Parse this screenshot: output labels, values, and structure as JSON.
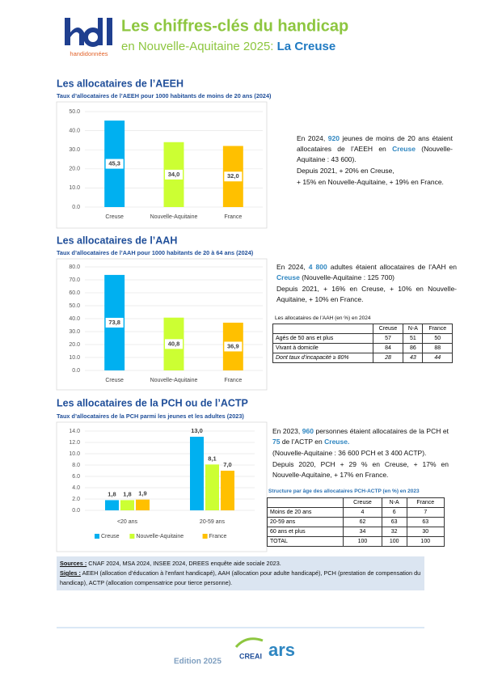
{
  "header": {
    "logo_text": "handidonnées",
    "title": "Les chiffres-clés du handicap",
    "subtitle": "en Nouvelle-Aquitaine 2025: ",
    "territory": "La Creuse"
  },
  "sections": [
    {
      "heading": "Les allocataires de l’AEEH",
      "chart": {
        "type": "bar",
        "title": "Taux d’allocataires de l’AEEH pour 1000 habitants de moins de 20 ans (2024)",
        "categories": [
          "Creuse",
          "Nouvelle-Aquitaine",
          "France"
        ],
        "values": [
          45.3,
          34.0,
          32.0
        ],
        "value_labels": [
          "45,3",
          "34,0",
          "32,0"
        ],
        "colors": [
          "#00b0f0",
          "#ccff33",
          "#ffc000"
        ],
        "ylim": [
          0,
          50
        ],
        "yticks": [
          {
            "value": 0,
            "label": "0.0"
          },
          {
            "value": 10,
            "label": "10.0"
          },
          {
            "value": 20,
            "label": "20.0"
          },
          {
            "value": 30,
            "label": "30.0"
          },
          {
            "value": 40,
            "label": "40.0"
          },
          {
            "value": 50,
            "label": "50.0"
          }
        ],
        "grid": true
      },
      "paragraphs": [
        [
          "En 2024, ",
          "920",
          " jeunes de moins de 20 ans étaient allocataires de l’AEEH en ",
          "Creuse",
          " (Nouvelle-Aquitaine : 43 600)."
        ],
        [
          "Depuis 2021, + 20% en Creuse,"
        ],
        [
          "+ 15% en Nouvelle-Aquitaine, + 19% en France."
        ]
      ]
    },
    {
      "heading": "Les allocataires de l’AAH",
      "chart": {
        "type": "bar",
        "title": "Taux d’allocataires de l’AAH pour 1000 habitants de 20 à 64 ans (2024)",
        "categories": [
          "Creuse",
          "Nouvelle-Aquitaine",
          "France"
        ],
        "values": [
          73.8,
          40.8,
          36.9
        ],
        "value_labels": [
          "73,8",
          "40,8",
          "36,9"
        ],
        "colors": [
          "#00b0f0",
          "#ccff33",
          "#ffc000"
        ],
        "ylim": [
          0,
          80
        ],
        "yticks": [
          {
            "value": 0,
            "label": "0.0"
          },
          {
            "value": 10,
            "label": "10.0"
          },
          {
            "value": 20,
            "label": "20.0"
          },
          {
            "value": 30,
            "label": "30.0"
          },
          {
            "value": 40,
            "label": "40.0"
          },
          {
            "value": 50,
            "label": "50.0"
          },
          {
            "value": 60,
            "label": "60.0"
          },
          {
            "value": 70,
            "label": "70.0"
          },
          {
            "value": 80,
            "label": "80.0"
          }
        ],
        "grid": true
      },
      "paragraphs": [
        [
          "En 2024, ",
          "4 800",
          " adultes étaient allocataires de l’AAH en ",
          "Creuse",
          " (Nouvelle-Aquitaine : 125 700)"
        ],
        [
          "Depuis 2021, + 16% en Creuse, + 10% en Nouvelle-Aquitaine, + 10% en France."
        ]
      ],
      "table": {
        "title": "Les allocataires de l’AAH (en %) en 2024",
        "columns": [
          "Creuse",
          "N-A",
          "France"
        ],
        "rows": [
          {
            "label": "Agés de 50 ans et plus",
            "values": [
              57,
              51,
              50
            ]
          },
          {
            "label": "Vivant à domicile",
            "values": [
              84,
              86,
              88
            ]
          },
          {
            "label": "Dont taux d’incapacité ≥ 80%",
            "values": [
              28,
              43,
              44
            ]
          }
        ]
      }
    },
    {
      "heading": "Les allocataires de la PCH ou de l’ACTP",
      "chart": {
        "type": "grouped-bar",
        "title": "Taux d’allocataires de la PCH parmi les jeunes et les adultes (2023)",
        "categories": [
          "<20 ans",
          "20-59 ans"
        ],
        "series": [
          {
            "name": "Creuse",
            "color": "#00b0f0",
            "values": [
              1.8,
              13.0
            ],
            "value_labels": [
              "1,8",
              "13,0"
            ]
          },
          {
            "name": "Nouvelle-Aquitaine",
            "color": "#ccff33",
            "values": [
              1.8,
              8.1
            ],
            "value_labels": [
              "1,8",
              "8,1"
            ]
          },
          {
            "name": "France",
            "color": "#ffc000",
            "values": [
              1.9,
              7.0
            ],
            "value_labels": [
              "1,9",
              "7,0"
            ]
          }
        ],
        "ylim": [
          0,
          14
        ],
        "yticks": [
          {
            "value": 0,
            "label": "0.0"
          },
          {
            "value": 2,
            "label": "2.0"
          },
          {
            "value": 4,
            "label": "4.0"
          },
          {
            "value": 6,
            "label": "6.0"
          },
          {
            "value": 8,
            "label": "8.0"
          },
          {
            "value": 10,
            "label": "10.0"
          },
          {
            "value": 12,
            "label": "12.0"
          },
          {
            "value": 14,
            "label": "14.0"
          }
        ],
        "grid": true,
        "legend": "bottom"
      },
      "paragraphs": [
        [
          "En 2023, ",
          "960",
          " personnes étaient allocataires de la PCH et ",
          "75",
          " de l’ACTP en ",
          "Creuse."
        ],
        [
          "(Nouvelle-Aquitaine : 36 600 PCH et 3 400 ACTP)."
        ],
        [
          "Depuis 2020, PCH + 29 % en Creuse, + 17% en Nouvelle-Aquitaine, + 17% en France."
        ]
      ],
      "table": {
        "title": "Structure par âge des allocataires PCH-ACTP (en %) en 2023",
        "columns": [
          "Creuse",
          "N-A",
          "France"
        ],
        "rows": [
          {
            "label": "Moins de 20 ans",
            "values": [
              4,
              6,
              7
            ]
          },
          {
            "label": "20-59 ans",
            "values": [
              62,
              63,
              63
            ]
          },
          {
            "label": "60 ans et plus",
            "values": [
              34,
              32,
              30
            ]
          },
          {
            "label": "TOTAL",
            "values": [
              100,
              100,
              100
            ]
          }
        ]
      }
    }
  ],
  "sources": {
    "sources_label": "Sources :",
    "sources_text": "CNAF 2024, MSA 2024, INSEE 2024, DREES enquête aide sociale 2023.",
    "sigles_label": "Sigles :",
    "sigles_text": "AEEH (allocation d’éducation à l’enfant handicapé), AAH (allocation pour adulte handicapé), PCH (prestation de compensation du handicap), ACTP (allocation compensatrice pour tierce personne)."
  },
  "footer": {
    "edition": "Edition 2025",
    "logo_creai": "CREAI",
    "logo_ars": "ars"
  }
}
